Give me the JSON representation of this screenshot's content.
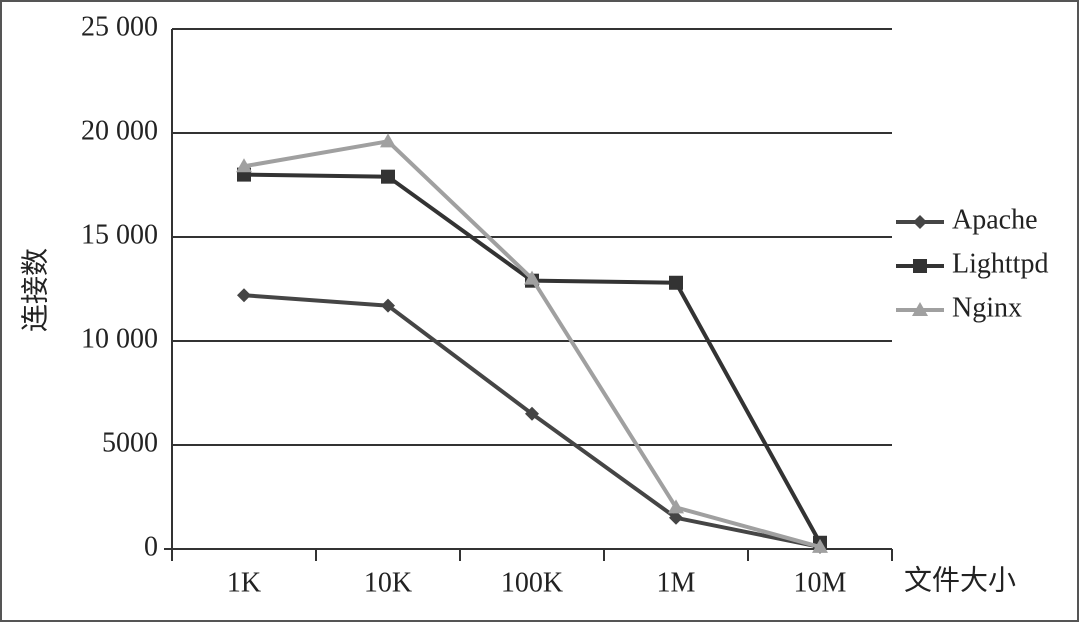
{
  "chart_data": {
    "type": "line",
    "y_label": "连接数",
    "x_label": "文件大小",
    "categories": [
      "1K",
      "10K",
      "100K",
      "1M",
      "10M"
    ],
    "series": [
      {
        "name": "Apache",
        "color": "#454545",
        "marker": "diamond",
        "values": [
          12200,
          11700,
          6500,
          1500,
          100
        ]
      },
      {
        "name": "Lighttpd",
        "color": "#333333",
        "marker": "square",
        "values": [
          18000,
          17900,
          12900,
          12800,
          300
        ]
      },
      {
        "name": "Nginx",
        "color": "#a0a0a0",
        "marker": "triangle",
        "values": [
          18400,
          19600,
          13000,
          2000,
          100
        ]
      }
    ],
    "ylim": [
      0,
      25000
    ],
    "yticks": [
      0,
      5000,
      {
        "value": 10000,
        "label": "10 000"
      },
      {
        "value": 15000,
        "label": "15 000"
      },
      {
        "value": 20000,
        "label": "20 000"
      },
      {
        "value": 25000,
        "label": "25 000"
      }
    ],
    "grid": true,
    "legend": "right"
  }
}
